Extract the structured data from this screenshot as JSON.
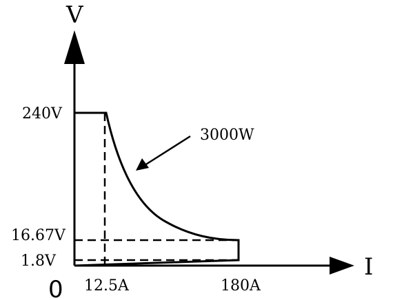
{
  "axes": {
    "y_name": "V",
    "x_name": "I",
    "origin": "0"
  },
  "y_ticks": {
    "v240": "240V",
    "v1667": "16.67V",
    "v18": "1.8V"
  },
  "x_ticks": {
    "a125": "12.5A",
    "a180": "180A"
  },
  "curve_label": "3000W",
  "chart_data": {
    "type": "line",
    "xlabel": "I",
    "ylabel": "V",
    "power_limit_watts": 3000,
    "max_voltage": 240,
    "max_current": 180,
    "knee_low_current": 12.5,
    "knee_high_voltage": 16.67,
    "min_voltage": 1.8,
    "series": [
      {
        "values": [
          {
            "x": 0,
            "y": 240
          },
          {
            "x": 12.5,
            "y": 240
          },
          {
            "x": 20,
            "y": 150
          },
          {
            "x": 40,
            "y": 75
          },
          {
            "x": 80,
            "y": 37.5
          },
          {
            "x": 120,
            "y": 25
          },
          {
            "x": 180,
            "y": 16.67
          },
          {
            "x": 180,
            "y": 1.8
          },
          {
            "x": 0,
            "y": 0
          }
        ]
      }
    ]
  }
}
